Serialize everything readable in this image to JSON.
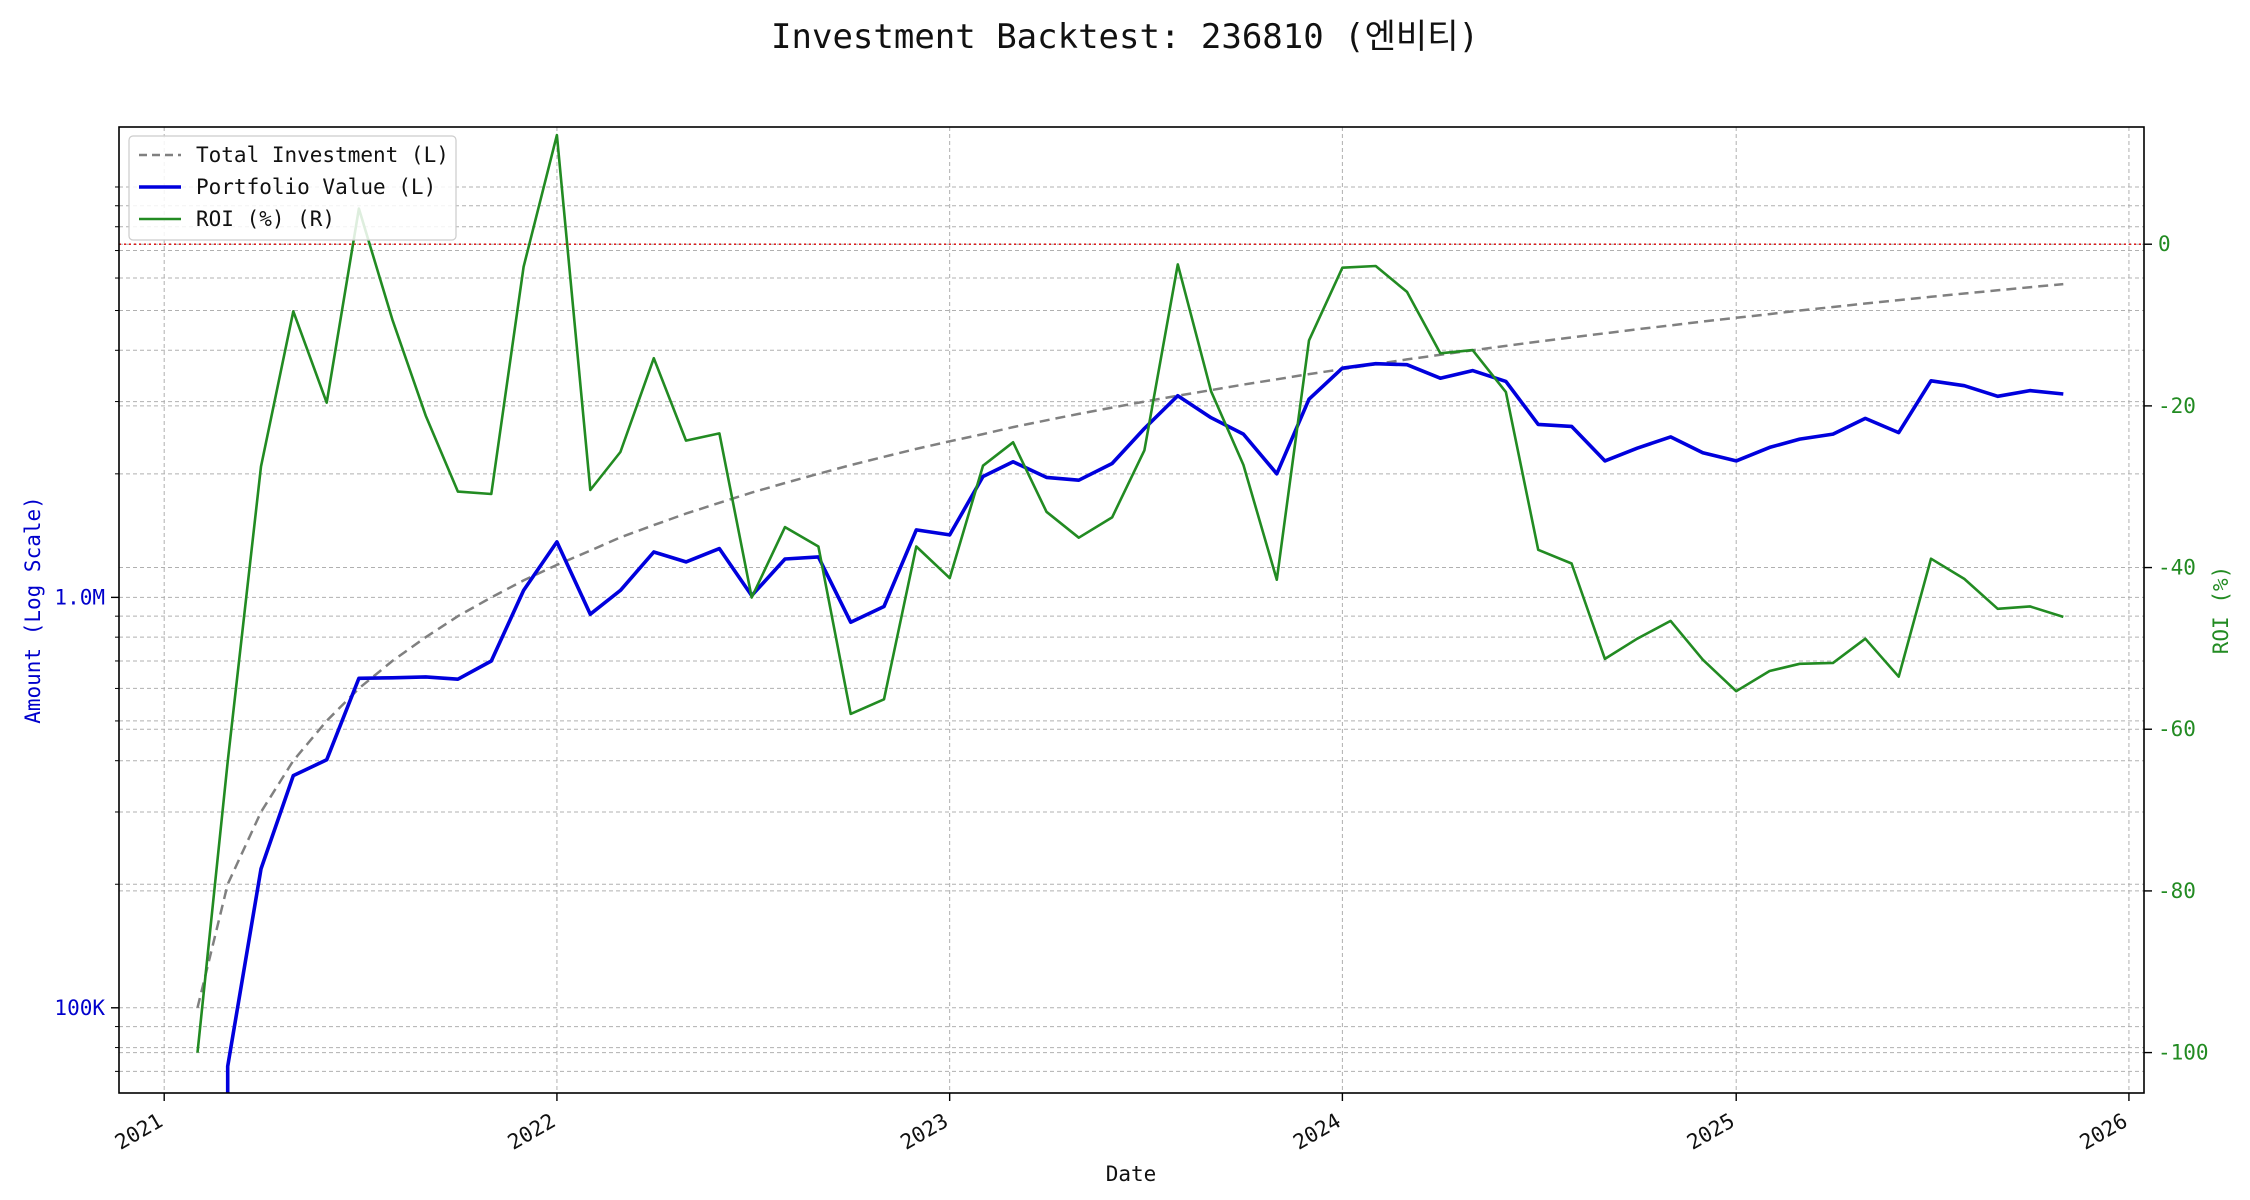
{
  "chart_data": {
    "type": "line",
    "title": "Investment Backtest: 236810 (엔비티)",
    "xlabel": "Date",
    "ylabel_left": "Amount (Log Scale)",
    "ylabel_right": "ROI (%)",
    "left_axis": {
      "scale": "log",
      "ylim": [
        62000,
        14000000
      ],
      "ticks": [
        {
          "value": 100000,
          "label": "100K"
        },
        {
          "value": 1000000,
          "label": "1.0M"
        }
      ],
      "color": "#0000cc"
    },
    "right_axis": {
      "scale": "linear",
      "ylim": [
        -105,
        14.5
      ],
      "ticks": [
        0,
        -20,
        -40,
        -60,
        -80,
        -100
      ],
      "color": "#228b22"
    },
    "x_axis": {
      "range": [
        "2020-11-20",
        "2026-01-15"
      ],
      "ticks": [
        {
          "date": "2021-01-01",
          "label": "2021"
        },
        {
          "date": "2022-01-01",
          "label": "2022"
        },
        {
          "date": "2023-01-01",
          "label": "2023"
        },
        {
          "date": "2024-01-01",
          "label": "2024"
        },
        {
          "date": "2025-01-01",
          "label": "2025"
        },
        {
          "date": "2026-01-01",
          "label": "2026"
        }
      ]
    },
    "grid": true,
    "legend_position": "top-left",
    "reference_line": {
      "axis": "right",
      "value": 0,
      "color": "#dd0000",
      "style": "dotted"
    },
    "dates": [
      "2021-02-01",
      "2021-03-01",
      "2021-04-01",
      "2021-05-01",
      "2021-06-01",
      "2021-07-01",
      "2021-08-01",
      "2021-09-01",
      "2021-10-01",
      "2021-11-01",
      "2021-12-01",
      "2022-01-01",
      "2022-02-01",
      "2022-03-01",
      "2022-04-01",
      "2022-05-01",
      "2022-06-01",
      "2022-07-01",
      "2022-08-01",
      "2022-09-01",
      "2022-10-01",
      "2022-11-01",
      "2022-12-01",
      "2023-01-01",
      "2023-02-01",
      "2023-03-01",
      "2023-04-01",
      "2023-05-01",
      "2023-06-01",
      "2023-07-01",
      "2023-08-01",
      "2023-09-01",
      "2023-10-01",
      "2023-11-01",
      "2023-12-01",
      "2024-01-01",
      "2024-02-01",
      "2024-03-01",
      "2024-04-01",
      "2024-05-01",
      "2024-06-01",
      "2024-07-01",
      "2024-08-01",
      "2024-09-01",
      "2024-10-01",
      "2024-11-01",
      "2024-12-01",
      "2025-01-01",
      "2025-02-01",
      "2025-03-01",
      "2025-04-01",
      "2025-05-01",
      "2025-06-01",
      "2025-07-01",
      "2025-08-01",
      "2025-09-01",
      "2025-10-01",
      "2025-11-01"
    ],
    "series": [
      {
        "name": "Total Investment (L)",
        "axis": "left",
        "color": "#808080",
        "style": "dashed",
        "values": [
          100000,
          200000,
          300000,
          400000,
          500000,
          600000,
          700000,
          800000,
          900000,
          1000000,
          1100000,
          1200000,
          1300000,
          1400000,
          1500000,
          1600000,
          1700000,
          1800000,
          1900000,
          2000000,
          2100000,
          2200000,
          2300000,
          2400000,
          2500000,
          2600000,
          2700000,
          2800000,
          2900000,
          3000000,
          3100000,
          3200000,
          3300000,
          3400000,
          3500000,
          3600000,
          3700000,
          3800000,
          3900000,
          4000000,
          4100000,
          4200000,
          4300000,
          4400000,
          4500000,
          4600000,
          4700000,
          4800000,
          4900000,
          5000000,
          5100000,
          5200000,
          5300000,
          5400000,
          5500000,
          5600000,
          5700000,
          5800000
        ]
      },
      {
        "name": "Portfolio Value (L)",
        "axis": "left",
        "color": "#0000dd",
        "style": "solid",
        "values": [
          null,
          72000,
          218000,
          368000,
          402000,
          635000,
          637000,
          640000,
          632000,
          700000,
          1040000,
          1365000,
          910000,
          1040000,
          1290000,
          1220000,
          1315000,
          1010000,
          1240000,
          1255000,
          870000,
          950000,
          1460000,
          1420000,
          1970000,
          2140000,
          1960000,
          1930000,
          2120000,
          2580000,
          3100000,
          2740000,
          2500000,
          2000000,
          3040000,
          3620000,
          3710000,
          3690000,
          3420000,
          3570000,
          3360000,
          2640000,
          2610000,
          2150000,
          2310000,
          2460000,
          2250000,
          2150000,
          2320000,
          2430000,
          2500000,
          2730000,
          2520000,
          3370000,
          3280000,
          3090000,
          3190000,
          3130000
        ]
      },
      {
        "name": "ROI (%) (R)",
        "axis": "right",
        "color": "#228b22",
        "style": "solid",
        "values": [
          -100,
          -64,
          -27.5,
          -8.3,
          -19.6,
          4.4,
          -9.3,
          -21.2,
          -30.6,
          -30.9,
          -2.8,
          13.5,
          -30.4,
          -25.7,
          -14.1,
          -24.3,
          -23.4,
          -43.7,
          -35,
          -37.4,
          -58.1,
          -56.3,
          -37.4,
          -41.3,
          -27.4,
          -24.5,
          -33.1,
          -36.3,
          -33.8,
          -25.5,
          -2.5,
          -18.2,
          -27.3,
          -41.5,
          -11.9,
          -2.9,
          -2.7,
          -5.9,
          -13.5,
          -13.1,
          -18.3,
          -37.8,
          -39.5,
          -51.3,
          -48.8,
          -46.6,
          -51.4,
          -55.3,
          -52.8,
          -51.9,
          -51.8,
          -48.8,
          -53.5,
          -38.9,
          -41.4,
          -45.1,
          -44.8,
          -46.1
        ]
      }
    ]
  }
}
